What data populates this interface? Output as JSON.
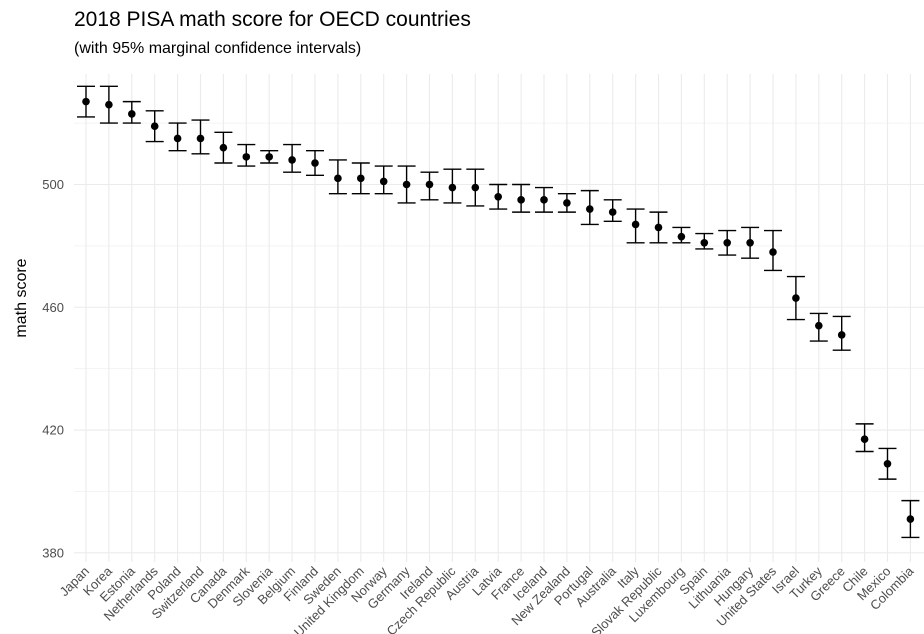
{
  "chart_data": {
    "type": "scatter",
    "title": "2018 PISA math score for OECD countries",
    "subtitle": "(with 95% marginal confidence intervals)",
    "xlabel": "",
    "ylabel": "math score",
    "ylim": [
      377,
      536
    ],
    "yticks": [
      380,
      420,
      460,
      500
    ],
    "grid": true,
    "error_bars": true,
    "categories": [
      "Japan",
      "Korea",
      "Estonia",
      "Netherlands",
      "Poland",
      "Switzerland",
      "Canada",
      "Denmark",
      "Slovenia",
      "Belgium",
      "Finland",
      "Sweden",
      "United Kingdom",
      "Norway",
      "Germany",
      "Ireland",
      "Czech Republic",
      "Austria",
      "Latvia",
      "France",
      "Iceland",
      "New Zealand",
      "Portugal",
      "Australia",
      "Italy",
      "Slovak Republic",
      "Luxembourg",
      "Spain",
      "Lithuania",
      "Hungary",
      "United States",
      "Israel",
      "Turkey",
      "Greece",
      "Chile",
      "Mexico",
      "Colombia"
    ],
    "values": [
      527,
      526,
      523,
      519,
      515,
      515,
      512,
      509,
      509,
      508,
      507,
      502,
      502,
      501,
      500,
      500,
      499,
      499,
      496,
      495,
      495,
      494,
      492,
      491,
      487,
      486,
      483,
      481,
      481,
      481,
      478,
      463,
      454,
      451,
      417,
      409,
      391
    ],
    "lower": [
      522,
      520,
      520,
      514,
      511,
      510,
      507,
      506,
      507,
      504,
      503,
      497,
      497,
      497,
      494,
      495,
      494,
      493,
      492,
      491,
      491,
      491,
      487,
      488,
      481,
      481,
      481,
      479,
      477,
      476,
      472,
      456,
      449,
      446,
      413,
      404,
      385
    ],
    "upper": [
      532,
      532,
      527,
      524,
      520,
      521,
      517,
      513,
      511,
      513,
      511,
      508,
      507,
      506,
      506,
      504,
      505,
      505,
      500,
      500,
      499,
      497,
      498,
      495,
      492,
      491,
      486,
      484,
      485,
      486,
      485,
      470,
      458,
      457,
      422,
      414,
      397
    ]
  }
}
